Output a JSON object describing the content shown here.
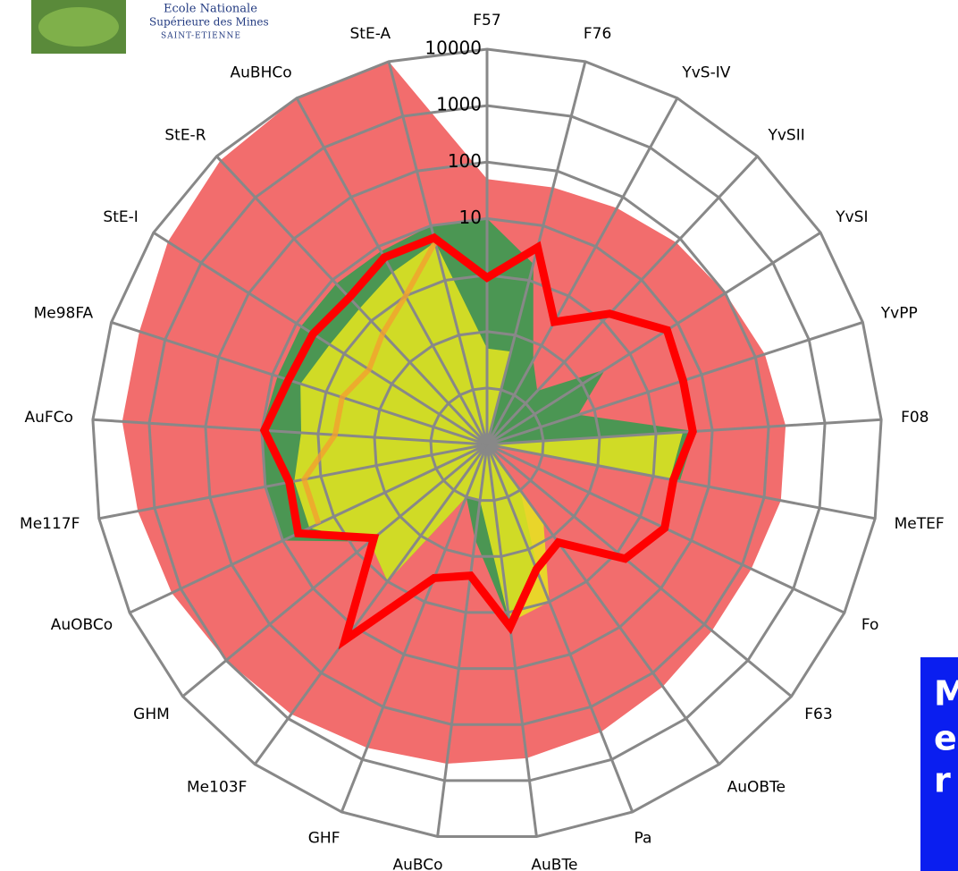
{
  "header": {
    "school_lines": [
      "Ecole Nationale",
      "Supérieure des Mines",
      "SAINT-ETIENNE"
    ]
  },
  "banner": {
    "lines": [
      "M",
      "e",
      "r"
    ]
  },
  "chart_data": {
    "type": "radar",
    "log_scale": true,
    "categories": [
      "F57",
      "F76",
      "YvS-IV",
      "YvSII",
      "YvSI",
      "YvPP",
      "F08",
      "MeTEF",
      "Fo",
      "F63",
      "AuOBTe",
      "Pa",
      "AuBTe",
      "AuBCo",
      "GHF",
      "Me103F",
      "GHM",
      "AuOBCo",
      "Me117F",
      "AuFCo",
      "Me98FA",
      "StE-I",
      "StE-R",
      "AuBHCo",
      "StE-A"
    ],
    "ylim": [
      0.001,
      10000
    ],
    "yticks": [
      0.001,
      0.01,
      0.1,
      1,
      10,
      100,
      1000,
      10000
    ],
    "labelled_ticks": [
      10,
      100,
      1000,
      10000
    ],
    "series": [
      {
        "kind": "area",
        "color": "#f26d6d",
        "values": [
          50,
          50,
          60,
          80,
          100,
          150,
          200,
          200,
          150,
          150,
          200,
          300,
          400,
          500,
          600,
          800,
          1000,
          1500,
          2000,
          3000,
          3000,
          5000,
          8000,
          10000,
          10000
        ]
      },
      {
        "kind": "area",
        "color": "#2e9e4f",
        "values": [
          10,
          2,
          0.05,
          0.02,
          0.3,
          0.05,
          5,
          3,
          0.001,
          0.001,
          0.01,
          0.3,
          1.5,
          0.05,
          0.01,
          1,
          0.5,
          10,
          10,
          10,
          8,
          8,
          8,
          8,
          10
        ]
      },
      {
        "kind": "area",
        "color": "#e8e81e",
        "values": [
          0.05,
          0.05,
          0.001,
          0.001,
          0.001,
          0.001,
          3,
          2,
          0.001,
          0.001,
          0.05,
          1,
          1.5,
          0.01,
          0.01,
          1,
          0.5,
          3,
          3,
          2,
          3,
          2,
          2,
          3,
          5
        ]
      },
      {
        "kind": "line",
        "color": "#f2a030",
        "values": [
          null,
          null,
          null,
          null,
          null,
          null,
          null,
          null,
          null,
          null,
          null,
          null,
          null,
          null,
          null,
          null,
          null,
          2,
          2,
          0.5,
          0.5,
          0.3,
          0.5,
          1,
          5
        ]
      },
      {
        "kind": "line",
        "color": "#ff0000",
        "values": [
          0.9,
          4,
          0.3,
          1.5,
          6,
          4.5,
          4.5,
          2.3,
          3,
          1.5,
          0.14,
          0.24,
          1.8,
          0.22,
          0.35,
          19,
          0.4,
          5,
          3.7,
          9,
          5,
          4.5,
          3.7,
          6,
          6
        ]
      }
    ]
  }
}
